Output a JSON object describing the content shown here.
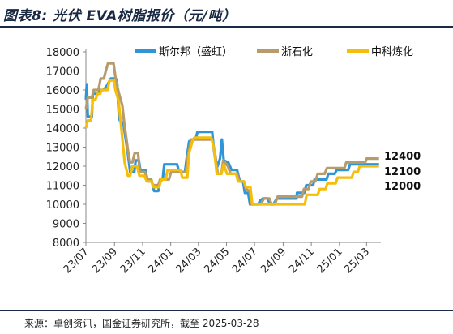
{
  "header": {
    "title": "图表8: 光伏 EVA树脂报价（元/吨）"
  },
  "footer": {
    "source": "来源：卓创资讯，国金证券研究所，截至 2025-03-28"
  },
  "colors": {
    "series1": "#2e95d8",
    "series2": "#b79b6a",
    "series3": "#f5be0b",
    "axis": "#888888"
  },
  "chart_data": {
    "type": "line",
    "title": "图表8: 光伏 EVA树脂报价（元/吨）",
    "xlabel": "",
    "ylabel": "",
    "ylim": [
      8000,
      18000
    ],
    "xlim": [
      "2023-07-01",
      "2025-04-01"
    ],
    "y_ticks": [
      "8000",
      "9000",
      "10000",
      "11000",
      "12000",
      "13000",
      "14000",
      "15000",
      "16000",
      "17000",
      "18000"
    ],
    "x_ticks": [
      {
        "date": "2023-07-01",
        "label": "23/07"
      },
      {
        "date": "2023-09-01",
        "label": "23/09"
      },
      {
        "date": "2023-11-01",
        "label": "23/11"
      },
      {
        "date": "2024-01-01",
        "label": "24/01"
      },
      {
        "date": "2024-03-01",
        "label": "24/03"
      },
      {
        "date": "2024-05-01",
        "label": "24/05"
      },
      {
        "date": "2024-07-01",
        "label": "24/07"
      },
      {
        "date": "2024-09-01",
        "label": "24/09"
      },
      {
        "date": "2024-11-01",
        "label": "24/11"
      },
      {
        "date": "2025-01-01",
        "label": "25/01"
      },
      {
        "date": "2025-03-01",
        "label": "25/03"
      }
    ],
    "legend_position": "top-right",
    "grid": false,
    "end_labels": [
      "12400",
      "12100",
      "12000"
    ],
    "series": [
      {
        "name": "斯尔邦（盛虹）",
        "color": "#2e95d8",
        "points": [
          [
            "2023-07-01",
            15500
          ],
          [
            "2023-07-03",
            16300
          ],
          [
            "2023-07-05",
            14600
          ],
          [
            "2023-07-08",
            14600
          ],
          [
            "2023-07-14",
            14600
          ],
          [
            "2023-07-16",
            15800
          ],
          [
            "2023-07-22",
            15800
          ],
          [
            "2023-07-28",
            15800
          ],
          [
            "2023-08-01",
            16000
          ],
          [
            "2023-08-08",
            16000
          ],
          [
            "2023-08-15",
            16200
          ],
          [
            "2023-08-24",
            16600
          ],
          [
            "2023-09-04",
            16600
          ],
          [
            "2023-09-07",
            16300
          ],
          [
            "2023-09-11",
            14500
          ],
          [
            "2023-09-15",
            14300
          ],
          [
            "2023-09-20",
            14300
          ],
          [
            "2023-09-23",
            13800
          ],
          [
            "2023-10-01",
            12500
          ],
          [
            "2023-10-05",
            11700
          ],
          [
            "2023-10-14",
            11700
          ],
          [
            "2023-10-17",
            12300
          ],
          [
            "2023-10-24",
            12300
          ],
          [
            "2023-10-27",
            11800
          ],
          [
            "2023-11-07",
            11800
          ],
          [
            "2023-11-12",
            11200
          ],
          [
            "2023-11-21",
            11200
          ],
          [
            "2023-11-26",
            10700
          ],
          [
            "2023-12-05",
            10700
          ],
          [
            "2023-12-08",
            11100
          ],
          [
            "2023-12-15",
            11400
          ],
          [
            "2023-12-18",
            12100
          ],
          [
            "2024-01-01",
            12100
          ],
          [
            "2024-01-15",
            12100
          ],
          [
            "2024-01-19",
            11700
          ],
          [
            "2024-02-01",
            11700
          ],
          [
            "2024-02-04",
            12300
          ],
          [
            "2024-02-10",
            13300
          ],
          [
            "2024-02-25",
            13500
          ],
          [
            "2024-02-28",
            13800
          ],
          [
            "2024-03-31",
            13800
          ],
          [
            "2024-04-04",
            12800
          ],
          [
            "2024-04-10",
            11900
          ],
          [
            "2024-04-17",
            12400
          ],
          [
            "2024-04-21",
            13400
          ],
          [
            "2024-04-25",
            12300
          ],
          [
            "2024-05-05",
            12200
          ],
          [
            "2024-05-12",
            11800
          ],
          [
            "2024-05-24",
            11800
          ],
          [
            "2024-05-30",
            11200
          ],
          [
            "2024-06-06",
            11200
          ],
          [
            "2024-06-10",
            10600
          ],
          [
            "2024-06-17",
            10600
          ],
          [
            "2024-06-21",
            10000
          ],
          [
            "2024-07-09",
            10000
          ],
          [
            "2024-07-13",
            10200
          ],
          [
            "2024-07-19",
            10300
          ],
          [
            "2024-07-29",
            10300
          ],
          [
            "2024-08-04",
            10000
          ],
          [
            "2024-08-11",
            10000
          ],
          [
            "2024-08-18",
            10300
          ],
          [
            "2024-09-30",
            10300
          ],
          [
            "2024-10-01",
            10600
          ],
          [
            "2024-10-17",
            10600
          ],
          [
            "2024-10-21",
            11000
          ],
          [
            "2024-11-05",
            11000
          ],
          [
            "2024-11-08",
            11300
          ],
          [
            "2024-12-04",
            11300
          ],
          [
            "2024-12-08",
            11600
          ],
          [
            "2024-12-22",
            11600
          ],
          [
            "2024-12-26",
            11800
          ],
          [
            "2025-01-20",
            11800
          ],
          [
            "2025-01-24",
            12100
          ],
          [
            "2025-03-28",
            12100
          ]
        ]
      },
      {
        "name": "浙石化",
        "color": "#b79b6a",
        "points": [
          [
            "2023-07-01",
            15000
          ],
          [
            "2023-07-05",
            15600
          ],
          [
            "2023-07-14",
            15600
          ],
          [
            "2023-07-18",
            16000
          ],
          [
            "2023-07-28",
            16000
          ],
          [
            "2023-08-02",
            16600
          ],
          [
            "2023-08-09",
            16600
          ],
          [
            "2023-08-13",
            17000
          ],
          [
            "2023-08-18",
            17400
          ],
          [
            "2023-08-30",
            17400
          ],
          [
            "2023-09-04",
            16500
          ],
          [
            "2023-09-11",
            15800
          ],
          [
            "2023-09-18",
            15200
          ],
          [
            "2023-09-22",
            14300
          ],
          [
            "2023-10-01",
            12700
          ],
          [
            "2023-10-05",
            12200
          ],
          [
            "2023-10-10",
            12200
          ],
          [
            "2023-10-15",
            12700
          ],
          [
            "2023-10-22",
            12700
          ],
          [
            "2023-10-26",
            11700
          ],
          [
            "2023-11-06",
            11700
          ],
          [
            "2023-11-10",
            11300
          ],
          [
            "2023-11-20",
            11300
          ],
          [
            "2023-11-23",
            11000
          ],
          [
            "2023-12-05",
            11000
          ],
          [
            "2023-12-09",
            11300
          ],
          [
            "2023-12-28",
            11300
          ],
          [
            "2024-01-02",
            11700
          ],
          [
            "2024-01-20",
            11700
          ],
          [
            "2024-02-03",
            11700
          ],
          [
            "2024-02-07",
            12500
          ],
          [
            "2024-02-14",
            13400
          ],
          [
            "2024-03-31",
            13400
          ],
          [
            "2024-04-06",
            12700
          ],
          [
            "2024-04-12",
            11600
          ],
          [
            "2024-04-20",
            11600
          ],
          [
            "2024-04-24",
            12300
          ],
          [
            "2024-05-04",
            12000
          ],
          [
            "2024-05-10",
            11600
          ],
          [
            "2024-05-24",
            11600
          ],
          [
            "2024-05-29",
            11200
          ],
          [
            "2024-06-08",
            11200
          ],
          [
            "2024-06-12",
            10800
          ],
          [
            "2024-06-20",
            10700
          ],
          [
            "2024-06-25",
            10000
          ],
          [
            "2024-07-15",
            10000
          ],
          [
            "2024-07-21",
            10300
          ],
          [
            "2024-08-02",
            10300
          ],
          [
            "2024-08-07",
            10000
          ],
          [
            "2024-08-14",
            10000
          ],
          [
            "2024-08-20",
            10400
          ],
          [
            "2024-10-12",
            10400
          ],
          [
            "2024-10-16",
            10800
          ],
          [
            "2024-10-26",
            10800
          ],
          [
            "2024-10-31",
            11200
          ],
          [
            "2024-11-10",
            11200
          ],
          [
            "2024-11-15",
            11600
          ],
          [
            "2024-11-30",
            11600
          ],
          [
            "2024-12-05",
            11900
          ],
          [
            "2025-01-12",
            11900
          ],
          [
            "2025-01-16",
            12200
          ],
          [
            "2025-02-26",
            12200
          ],
          [
            "2025-03-01",
            12400
          ],
          [
            "2025-03-28",
            12400
          ]
        ]
      },
      {
        "name": "中科炼化",
        "color": "#f5be0b",
        "points": [
          [
            "2023-07-01",
            14000
          ],
          [
            "2023-07-05",
            14400
          ],
          [
            "2023-07-12",
            14400
          ],
          [
            "2023-07-16",
            15500
          ],
          [
            "2023-07-22",
            15500
          ],
          [
            "2023-07-26",
            15800
          ],
          [
            "2023-08-01",
            15800
          ],
          [
            "2023-08-04",
            16000
          ],
          [
            "2023-08-17",
            16000
          ],
          [
            "2023-08-21",
            16500
          ],
          [
            "2023-08-31",
            16500
          ],
          [
            "2023-09-03",
            16000
          ],
          [
            "2023-09-10",
            15400
          ],
          [
            "2023-09-17",
            13700
          ],
          [
            "2023-09-23",
            12200
          ],
          [
            "2023-09-30",
            11500
          ],
          [
            "2023-10-05",
            11500
          ],
          [
            "2023-10-10",
            12000
          ],
          [
            "2023-10-20",
            12000
          ],
          [
            "2023-10-25",
            11500
          ],
          [
            "2023-11-05",
            11500
          ],
          [
            "2023-11-10",
            11200
          ],
          [
            "2023-11-21",
            11200
          ],
          [
            "2023-11-25",
            10900
          ],
          [
            "2023-12-07",
            10900
          ],
          [
            "2023-12-11",
            11300
          ],
          [
            "2023-12-21",
            11300
          ],
          [
            "2023-12-25",
            11800
          ],
          [
            "2024-01-22",
            11800
          ],
          [
            "2024-01-26",
            11400
          ],
          [
            "2024-02-06",
            11400
          ],
          [
            "2024-02-10",
            12700
          ],
          [
            "2024-02-17",
            13300
          ],
          [
            "2024-02-21",
            13500
          ],
          [
            "2024-03-29",
            13500
          ],
          [
            "2024-04-04",
            12900
          ],
          [
            "2024-04-10",
            11600
          ],
          [
            "2024-04-20",
            11600
          ],
          [
            "2024-04-25",
            12100
          ],
          [
            "2024-05-02",
            11600
          ],
          [
            "2024-05-22",
            11600
          ],
          [
            "2024-05-26",
            11200
          ],
          [
            "2024-06-08",
            11200
          ],
          [
            "2024-06-12",
            10900
          ],
          [
            "2024-06-22",
            10900
          ],
          [
            "2024-06-26",
            10000
          ],
          [
            "2024-09-09",
            10000
          ],
          [
            "2024-09-14",
            10000
          ],
          [
            "2024-10-18",
            10000
          ],
          [
            "2024-10-22",
            10500
          ],
          [
            "2024-11-15",
            10500
          ],
          [
            "2024-11-19",
            10800
          ],
          [
            "2024-12-02",
            10800
          ],
          [
            "2024-12-06",
            11100
          ],
          [
            "2024-12-24",
            11100
          ],
          [
            "2024-12-28",
            11400
          ],
          [
            "2025-01-28",
            11400
          ],
          [
            "2025-02-01",
            11700
          ],
          [
            "2025-02-10",
            11700
          ],
          [
            "2025-02-14",
            12000
          ],
          [
            "2025-03-28",
            12000
          ]
        ]
      }
    ]
  }
}
